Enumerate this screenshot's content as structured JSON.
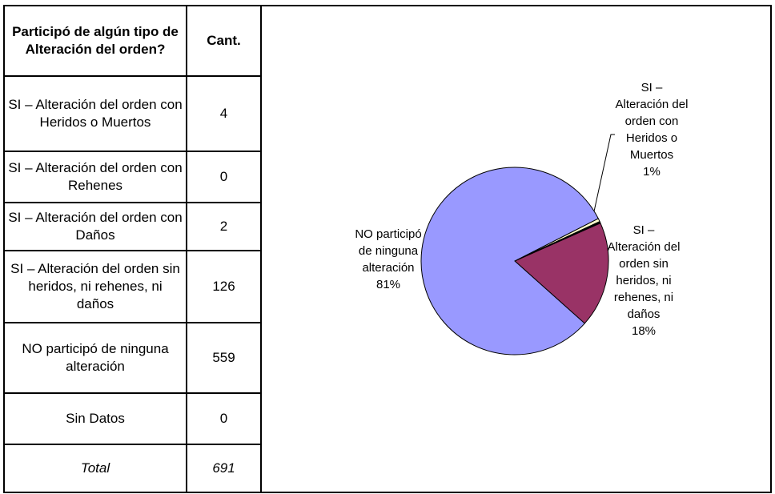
{
  "table": {
    "header": [
      "Participó de algún tipo de Alteración del orden?",
      "Cant."
    ],
    "rows": [
      {
        "label": "SI – Alteración del orden con Heridos o Muertos",
        "value": "4"
      },
      {
        "label": "SI – Alteración del orden con Rehenes",
        "value": "0"
      },
      {
        "label": "SI – Alteración del orden con Daños",
        "value": "2"
      },
      {
        "label": "SI – Alteración del orden sin heridos, ni rehenes, ni daños",
        "value": "126"
      },
      {
        "label": "NO participó de ninguna alteración",
        "value": "559"
      },
      {
        "label": "Sin Datos",
        "value": "0"
      },
      {
        "label": "Total",
        "value": "691"
      }
    ]
  },
  "chart_data": {
    "type": "pie",
    "slices": [
      {
        "name": "SI – Alteración del orden con Heridos o Muertos",
        "value": 4,
        "percent_label": "1%",
        "color": "#ffffcc"
      },
      {
        "name": "SI – Alteración del orden con Rehenes",
        "value": 0,
        "percent_label": "",
        "color": "#000000"
      },
      {
        "name": "SI – Alteración del orden con Daños",
        "value": 2,
        "percent_label": "",
        "color": "#000000"
      },
      {
        "name": "SI – Alteración del orden sin heridos, ni rehenes, ni daños",
        "value": 126,
        "percent_label": "18%",
        "color": "#993366"
      },
      {
        "name": "NO participó de ninguna alteración",
        "value": 559,
        "percent_label": "81%",
        "color": "#9999ff"
      },
      {
        "name": "Sin Datos",
        "value": 0,
        "percent_label": "",
        "color": "#000000"
      }
    ],
    "labels": {
      "heridos": [
        "SI –",
        "Alteración del",
        "orden con",
        "Heridos o",
        "Muertos",
        "1%"
      ],
      "sin_heridos": [
        "SI –",
        "Alteración del",
        "orden sin",
        "heridos, ni",
        "rehenes, ni",
        "daños",
        "18%"
      ],
      "no": [
        "NO participó",
        "de ninguna",
        "alteración",
        "81%"
      ]
    }
  }
}
